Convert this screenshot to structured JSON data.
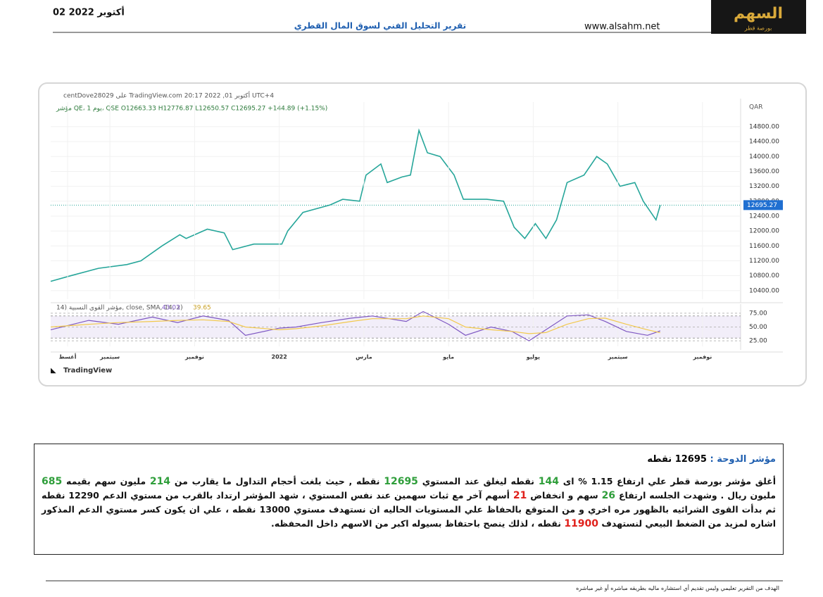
{
  "header": {
    "date": "02 أكتوبر 2022",
    "title": "تقرير التحليل الفني لسوق المال القطري",
    "website": "www.alsahm.net",
    "logo": "السهم",
    "logo_sub": "بورصة قطر"
  },
  "chart_data": [
    {
      "type": "line",
      "source_line": "centDove28029 على TradingView.com 20:17 2022 ,01 أكتوبر UTC+4",
      "ohlc_line": "مؤشر QE، 1 يوم، QSE  O12663.33  H12776.87  L12650.57  C12695.27  +144.89 (+1.15%)",
      "currency": "QAR",
      "x": [
        -0.4,
        0.07,
        0.73,
        1.4,
        1.73,
        2.23,
        2.65,
        2.8,
        3.3,
        3.7,
        3.9,
        4.4,
        5.06,
        5.2,
        5.56,
        6.2,
        6.5,
        6.9,
        7.05,
        7.4,
        7.55,
        7.9,
        8.1,
        8.3,
        8.5,
        8.8,
        9.13,
        9.35,
        9.9,
        10.3,
        10.55,
        10.8,
        11.05,
        11.3,
        11.55,
        11.8,
        12.2,
        12.5,
        12.75,
        13.05,
        13.4,
        13.6,
        13.9,
        14.0
      ],
      "series": [
        {
          "color": "#26a69a",
          "values": [
            10650,
            10800,
            11000,
            11100,
            11200,
            11600,
            11900,
            11800,
            12050,
            11950,
            11500,
            11650,
            11650,
            12000,
            12500,
            12700,
            12850,
            12800,
            13500,
            13800,
            13300,
            13450,
            13500,
            14700,
            14100,
            14000,
            13500,
            12850,
            12850,
            12800,
            12100,
            11800,
            12200,
            11800,
            12300,
            13300,
            13500,
            14000,
            13800,
            13200,
            13300,
            12800,
            12300,
            12695
          ]
        }
      ],
      "last_price": 12695.27,
      "xlim": [
        -0.4,
        15.9
      ],
      "ylim": [
        10170,
        15460
      ],
      "yticks": [
        {
          "value": 10400,
          "label": "10400.00"
        },
        {
          "value": 10800,
          "label": "10800.00"
        },
        {
          "value": 11200,
          "label": "11200.00"
        },
        {
          "value": 11600,
          "label": "11600.00"
        },
        {
          "value": 12000,
          "label": "12000.00"
        },
        {
          "value": 12400,
          "label": "12400.00"
        },
        {
          "value": 12800,
          "label": "12800.00"
        },
        {
          "value": 13200,
          "label": "13200.00"
        },
        {
          "value": 13600,
          "label": "13600.00"
        },
        {
          "value": 14000,
          "label": "14000.00"
        },
        {
          "value": 14400,
          "label": "14400.00"
        },
        {
          "value": 14800,
          "label": "14800.00"
        }
      ]
    },
    {
      "type": "line",
      "label": "14) مؤشر القوى النسبية, close, SMA, 14, 2)",
      "x": [
        -0.4,
        0.5,
        1.2,
        2,
        2.6,
        3.2,
        3.8,
        4.2,
        5,
        5.4,
        6,
        6.7,
        7.2,
        8,
        8.4,
        9,
        9.4,
        10,
        10.5,
        10.9,
        11.3,
        11.8,
        12.3,
        12.7,
        13.2,
        13.7,
        14.0
      ],
      "series": [
        {
          "color": "#7e57c2",
          "values": [
            45,
            62,
            55,
            68,
            58,
            70,
            62,
            35,
            48,
            50,
            58,
            66,
            70,
            60,
            78,
            55,
            35,
            50,
            42,
            25,
            45,
            70,
            72,
            60,
            42,
            35,
            43.03
          ]
        },
        {
          "color": "#f2c94c",
          "values": [
            50,
            55,
            58,
            60,
            62,
            63,
            60,
            50,
            45,
            47,
            52,
            60,
            65,
            65,
            70,
            65,
            50,
            45,
            42,
            38,
            40,
            55,
            65,
            66,
            55,
            45,
            39.65
          ]
        }
      ],
      "band": [
        30,
        70
      ],
      "xlim": [
        -0.4,
        15.9
      ],
      "ylim": [
        15,
        85
      ],
      "yticks": [
        {
          "value": 25,
          "label": "25.00"
        },
        {
          "value": 50,
          "label": "50.00"
        },
        {
          "value": 75,
          "label": "75.00"
        }
      ],
      "xticks": [
        {
          "value": 0,
          "label": "أغسط"
        },
        {
          "value": 1,
          "label": "سبتمبر"
        },
        {
          "value": 3,
          "label": "نوفمبر"
        },
        {
          "value": 5,
          "label": "2022"
        },
        {
          "value": 7,
          "label": "مارس"
        },
        {
          "value": 9,
          "label": "مايو"
        },
        {
          "value": 11,
          "label": "يوليو"
        },
        {
          "value": 13,
          "label": "سبتمبر"
        },
        {
          "value": 15,
          "label": "نوفمبر"
        }
      ]
    }
  ],
  "branding": "TradingView",
  "body": {
    "heading_label": "مؤشر الدوحة :",
    "heading_value": "12695 نقطه",
    "runs": [
      {
        "text": "أغلق مؤشر بورصة قطر علي ارتفاع "
      },
      {
        "text": "1.15 %"
      },
      {
        "text": " ای "
      },
      {
        "text": "144",
        "color": "green"
      },
      {
        "text": " نقطه ليغلق عند المستوي "
      },
      {
        "text": "12695",
        "color": "green"
      },
      {
        "text": " نقطه , حيث بلغت أحجام التداول ما يقارب من "
      },
      {
        "text": "214",
        "color": "green"
      },
      {
        "text": " مليون سهم بقيمه "
      },
      {
        "text": "685",
        "color": "green"
      },
      {
        "text": " مليون ريال . وشهدت الجلسه ارتفاع "
      },
      {
        "text": "26",
        "color": "green"
      },
      {
        "text": " سهم و انخفاض "
      },
      {
        "text": "21",
        "color": "red"
      },
      {
        "text": " أسهم آخر مع ثبات سهمين عند نفس المستوي ، شهد المؤشر ارتداد بالقرب من مستوي الدعم 12290 نقطه ثم بدأت القوى الشرائيه بالظهور مره اخري و من المتوقع بالحفاظ علي المستويات الحاليه ان نستهدف مستوي 13000 نقطه ، علي ان يكون كسر مستوي الدعم المذكور اشاره لمزيد من الضغط البيعي لنستهدف "
      },
      {
        "text": "11900",
        "color": "red"
      },
      {
        "text": " نقطه ، لذلك ينصح باحتفاظ بسيوله اكبر من الاسهم داخل المحفظه."
      }
    ]
  },
  "footer": "الهدف من التقرير تعليمي وليس تقديم أي استشاره ماليه بطريقه مباشره أو غير مباشره"
}
